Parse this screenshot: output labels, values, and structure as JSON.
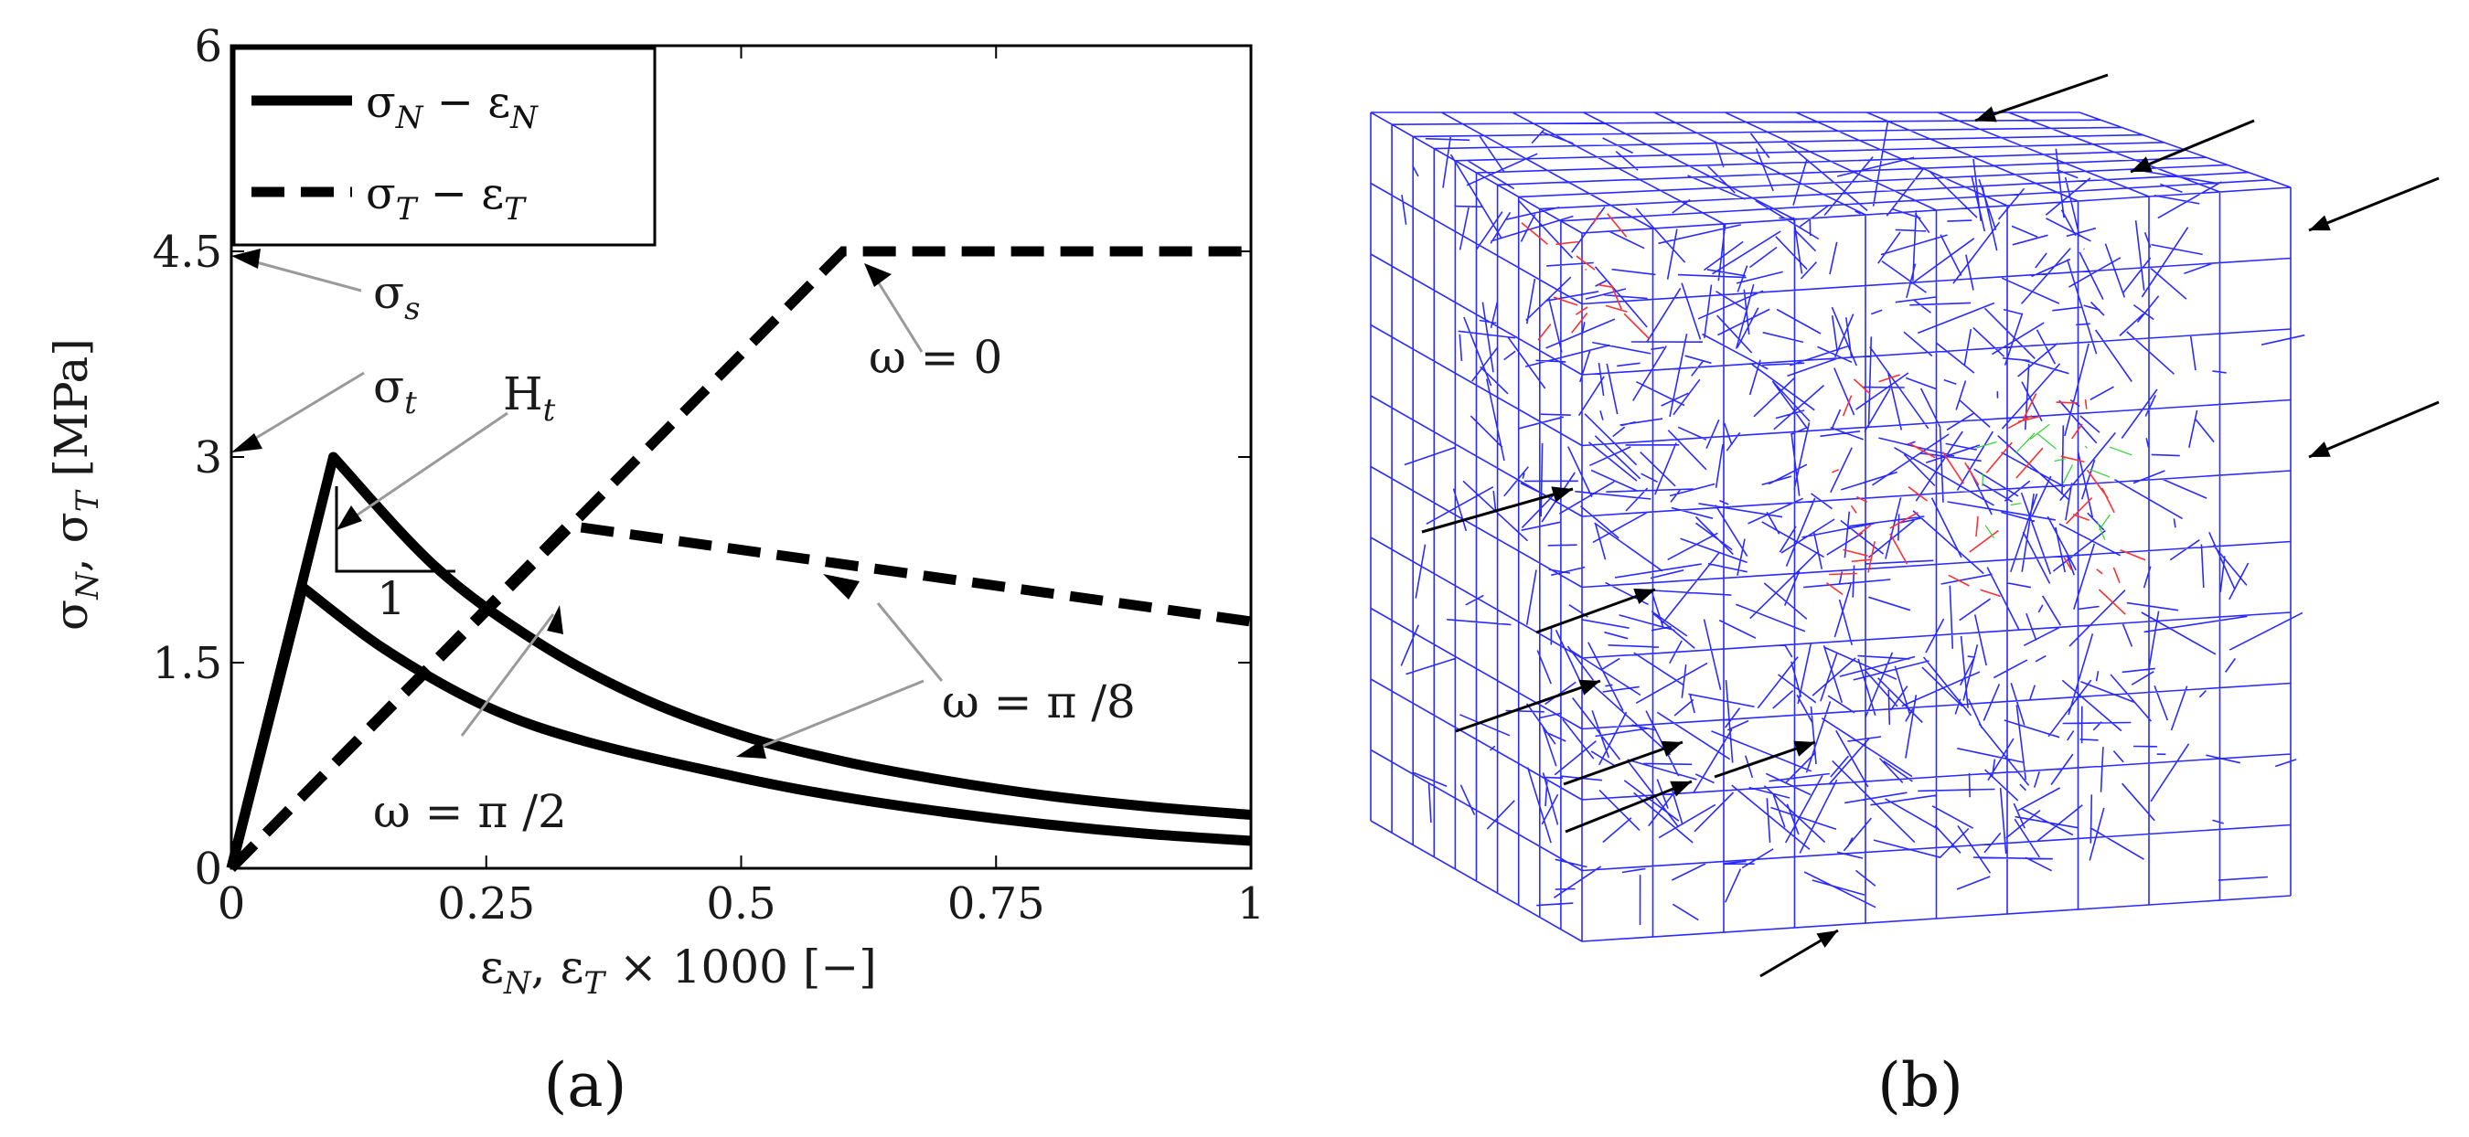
{
  "panel_a_label": "(a)",
  "panel_b_label": "(b)",
  "legend": [
    {
      "label": "σ_N − ε_N",
      "main1": "σ",
      "sub1": "N",
      "mid": " − ε",
      "sub2": "N",
      "style": "solid"
    },
    {
      "label": "σ_T − ε_T",
      "main1": "σ",
      "sub1": "T",
      "mid": " − ε",
      "sub2": "T",
      "style": "dashed"
    }
  ],
  "axis_labels": {
    "x": {
      "a": "ε",
      "a_sub": "N",
      "b": ", ε",
      "b_sub": "T",
      "rest": " × 1000 [−]"
    },
    "y": {
      "a": "σ",
      "a_sub": "N",
      "b": ", σ",
      "b_sub": "T",
      "rest": " [MPa]"
    }
  },
  "annotations": {
    "sigma_s": {
      "main": "σ",
      "sub": "s"
    },
    "sigma_t": {
      "main": "σ",
      "sub": "t"
    },
    "H_t": {
      "main": "H",
      "sub": "t"
    },
    "slope_one": "1",
    "omega_0": "ω = 0",
    "omega_pi8": "ω = π /8",
    "omega_pi2": "ω = π /2"
  },
  "chart_data": {
    "type": "line",
    "xlabel": "ε_N , ε_T × 1000 [−]",
    "ylabel": "σ_N , σ_T [MPa]",
    "xlim": [
      0,
      1
    ],
    "ylim": [
      0,
      6
    ],
    "xticks": [
      0,
      0.25,
      0.5,
      0.75,
      1
    ],
    "xtick_labels": [
      "0",
      "0.25",
      "0.5",
      "0.75",
      "1"
    ],
    "yticks": [
      0,
      1.5,
      3,
      4.5,
      6
    ],
    "ytick_labels": [
      "0",
      "1.5",
      "3",
      "4.5",
      "6"
    ],
    "legend_position": "top-left",
    "grid": false,
    "series": [
      {
        "name": "σ_N − ε_N",
        "group": "omega_pi8",
        "style": "solid",
        "x": [
          0,
          0.1,
          0.2,
          0.3,
          0.4,
          0.5,
          0.6,
          0.7,
          0.8,
          0.9,
          1.0
        ],
        "y": [
          0,
          3.0,
          2.2,
          1.65,
          1.25,
          0.97,
          0.78,
          0.64,
          0.53,
          0.45,
          0.39
        ]
      },
      {
        "name": "σ_N − ε_N",
        "group": "omega_pi2",
        "style": "solid",
        "x": [
          0,
          0.07,
          0.15,
          0.25,
          0.35,
          0.5,
          0.6,
          0.7,
          0.8,
          0.9,
          1.0
        ],
        "y": [
          0,
          2.05,
          1.6,
          1.18,
          0.92,
          0.66,
          0.52,
          0.41,
          0.32,
          0.25,
          0.2
        ]
      },
      {
        "name": "σ_T − ε_T",
        "group": "omega_0",
        "style": "dashed",
        "x": [
          0,
          0.6,
          1.0
        ],
        "y": [
          0,
          4.5,
          4.5
        ]
      },
      {
        "name": "σ_T − ε_T",
        "group": "omega_pi8",
        "style": "dashed",
        "x": [
          0,
          0.33,
          1.0
        ],
        "y": [
          0,
          2.5,
          1.8
        ]
      }
    ]
  }
}
